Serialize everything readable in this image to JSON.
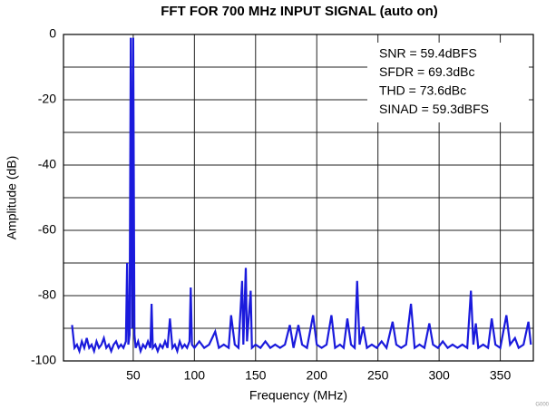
{
  "chart_data": {
    "type": "line",
    "title": "FFT FOR 700 MHz INPUT SIGNAL (auto on)",
    "xlabel": "Frequency (MHz)",
    "ylabel": "Amplitude (dB)",
    "annotations": [
      "SNR = 59.4dBFS",
      "SFDR = 69.3dBc",
      "THD = 73.6dBc",
      "SINAD = 59.3dBFS"
    ],
    "figure_id": "G000",
    "xlim": [
      -7,
      377
    ],
    "ylim": [
      -100,
      0
    ],
    "xticks": [
      50,
      100,
      150,
      200,
      250,
      300,
      350
    ],
    "yticks": [
      0,
      -20,
      -40,
      -60,
      -80,
      -100
    ],
    "yminor": [
      -10,
      -30,
      -50,
      -70,
      -90
    ],
    "grid": true,
    "series": [
      {
        "color": "#1a1adc",
        "x": [
          0,
          2,
          4,
          6,
          8,
          10,
          12,
          14,
          16,
          18,
          20,
          22,
          24,
          26,
          28,
          30,
          32,
          34,
          36,
          38,
          40,
          42,
          44,
          45,
          46,
          47,
          48,
          49,
          50,
          51,
          52,
          54,
          56,
          58,
          60,
          62,
          64,
          65,
          66,
          68,
          70,
          72,
          74,
          76,
          78,
          80,
          82,
          84,
          86,
          88,
          90,
          92,
          94,
          96,
          97,
          98,
          100,
          104,
          108,
          112,
          117,
          120,
          124,
          128,
          130,
          133,
          136,
          139,
          140,
          142,
          143,
          146,
          147,
          150,
          154,
          158,
          162,
          166,
          170,
          174,
          178,
          181,
          185,
          188,
          192,
          197,
          200,
          204,
          208,
          212,
          215,
          219,
          222,
          225,
          228,
          231,
          233,
          235,
          238,
          241,
          245,
          249,
          253,
          257,
          262,
          265,
          269,
          273,
          277,
          280,
          284,
          288,
          292,
          295,
          299,
          303,
          307,
          311,
          315,
          319,
          323,
          326,
          328,
          330,
          332,
          336,
          340,
          343,
          346,
          350,
          355,
          358,
          362,
          365,
          369,
          373,
          375
        ],
        "values": [
          -89,
          -96,
          -95,
          -97,
          -94,
          -96,
          -93,
          -96,
          -95,
          -97,
          -94,
          -96,
          -95,
          -93,
          -96,
          -95,
          -97,
          -95,
          -94,
          -96,
          -95,
          -96,
          -94,
          -70,
          -95,
          -92,
          -1,
          -90,
          -1,
          -92,
          -96,
          -94,
          -97,
          -95,
          -96,
          -94,
          -96,
          -82.5,
          -96,
          -95,
          -97,
          -95,
          -96,
          -94,
          -96,
          -87,
          -96,
          -95,
          -97,
          -94,
          -96,
          -95,
          -96,
          -94,
          -77.5,
          -95,
          -96,
          -94,
          -96,
          -95,
          -91,
          -96,
          -95,
          -96,
          -86,
          -95,
          -96,
          -75.5,
          -95,
          -71.5,
          -94,
          -78.5,
          -96,
          -95,
          -96,
          -94,
          -96,
          -95,
          -96,
          -95,
          -89,
          -96,
          -89,
          -95,
          -96,
          -86,
          -95,
          -96,
          -95,
          -86,
          -96,
          -95,
          -96,
          -87,
          -95,
          -96,
          -75.5,
          -95,
          -89.5,
          -96,
          -95,
          -96,
          -94,
          -96,
          -88,
          -95,
          -96,
          -95,
          -82.5,
          -96,
          -95,
          -96,
          -88.5,
          -95,
          -96,
          -94,
          -96,
          -95,
          -96,
          -95,
          -96,
          -78.5,
          -95,
          -88.5,
          -96,
          -95,
          -96,
          -87,
          -95,
          -96,
          -86,
          -95,
          -93,
          -96,
          -95,
          -88,
          -95
        ]
      }
    ]
  }
}
